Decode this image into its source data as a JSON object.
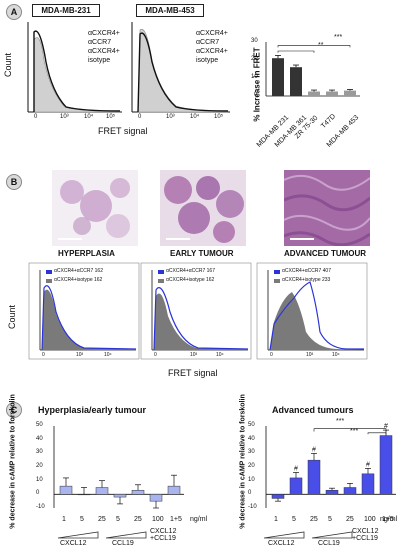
{
  "panel_a": {
    "label": "A",
    "titles": [
      "MDA-MB-231",
      "MDA-MB-453"
    ],
    "legend": [
      "αCXCR4+",
      "αCCR7",
      "αCXCR4+",
      "isotype"
    ],
    "ylabel": "Count",
    "xlabel": "FRET signal",
    "ticks": [
      "0",
      "10³",
      "10⁴",
      "10⁵"
    ],
    "colors": {
      "ccr7_line": "#111111",
      "isotype_fill": "#d0d0d0"
    }
  },
  "chart_data": [
    {
      "type": "bar",
      "categories": [
        "MDA-MB 231",
        "MDA-MB 361",
        "ZR 75-30",
        "T47D",
        "MDA-MB 453"
      ],
      "values": [
        21,
        16,
        2.5,
        2.5,
        3
      ],
      "errors": [
        1.5,
        1.2,
        0.8,
        0.8,
        0.6
      ],
      "ylabel": "% Increase in FRET",
      "ylim": [
        0,
        30
      ],
      "yticks": [
        "0",
        "10",
        "20",
        "30"
      ],
      "significance": [
        "**",
        "***"
      ],
      "colors": [
        "#333333",
        "#333333",
        "#9a9a9a",
        "#9a9a9a",
        "#9a9a9a"
      ]
    },
    {
      "type": "bar",
      "title": "Hyperplasia/early tumour",
      "categories": [
        "1",
        "5",
        "25",
        "5",
        "25",
        "100",
        "1+5"
      ],
      "values": [
        6,
        0,
        5,
        -2,
        3,
        -5,
        6
      ],
      "errors": [
        6,
        5,
        5,
        5,
        4,
        5,
        8
      ],
      "ylabel": "% decrease in cAMP relative to forskolin",
      "ylim": [
        -10,
        50
      ],
      "yticks": [
        "-10",
        "0",
        "10",
        "20",
        "30",
        "40",
        "50"
      ],
      "unit": "ng/ml",
      "group_labels": [
        "CXCL12",
        "CCL19",
        "CXCL12 +CCL19"
      ],
      "color": "#aab4ee"
    },
    {
      "type": "bar",
      "title": "Advanced tumours",
      "categories": [
        "1",
        "5",
        "25",
        "5",
        "25",
        "100",
        "1+5"
      ],
      "values": [
        -3,
        12,
        25,
        3,
        5,
        15,
        43
      ],
      "errors": [
        2,
        4,
        5,
        1.5,
        3,
        4,
        4
      ],
      "ylabel": "% decrease in cAMP relative to forskolin",
      "ylim": [
        -10,
        50
      ],
      "yticks": [
        "-10",
        "0",
        "10",
        "20",
        "30",
        "40",
        "50"
      ],
      "unit": "ng/ml",
      "group_labels": [
        "CXCL12",
        "CCL19",
        "CXCL12 +CCL19"
      ],
      "markers": [
        "",
        "#",
        "#",
        "",
        "",
        "#",
        "#"
      ],
      "significance": [
        "***",
        "***"
      ],
      "color": "#4a4ee8"
    }
  ],
  "panel_b": {
    "label": "B",
    "stages": [
      "HYPERPLASIA",
      "EARLY TUMOUR",
      "ADVANCED TUMOUR"
    ],
    "legends": [
      [
        "αCXCR4+αCCR7 162",
        "αCXCR4+isotype 162"
      ],
      [
        "αCXCR4+αCCR7 167",
        "αCXCR4+isotype 162"
      ],
      [
        "αCXCR4+αCCR7 407",
        "αCXCR4+isotype 233"
      ]
    ],
    "ylabel": "Count",
    "xlabel": "FRET signal",
    "ticks": [
      "0",
      "10³",
      "10⁴",
      "10⁵"
    ],
    "colors": {
      "ccr7_line": "#2b34d6",
      "isotype_fill": "#7a7a7a",
      "tissue": "#a86aa8"
    }
  },
  "panel_c": {
    "label": "C"
  }
}
